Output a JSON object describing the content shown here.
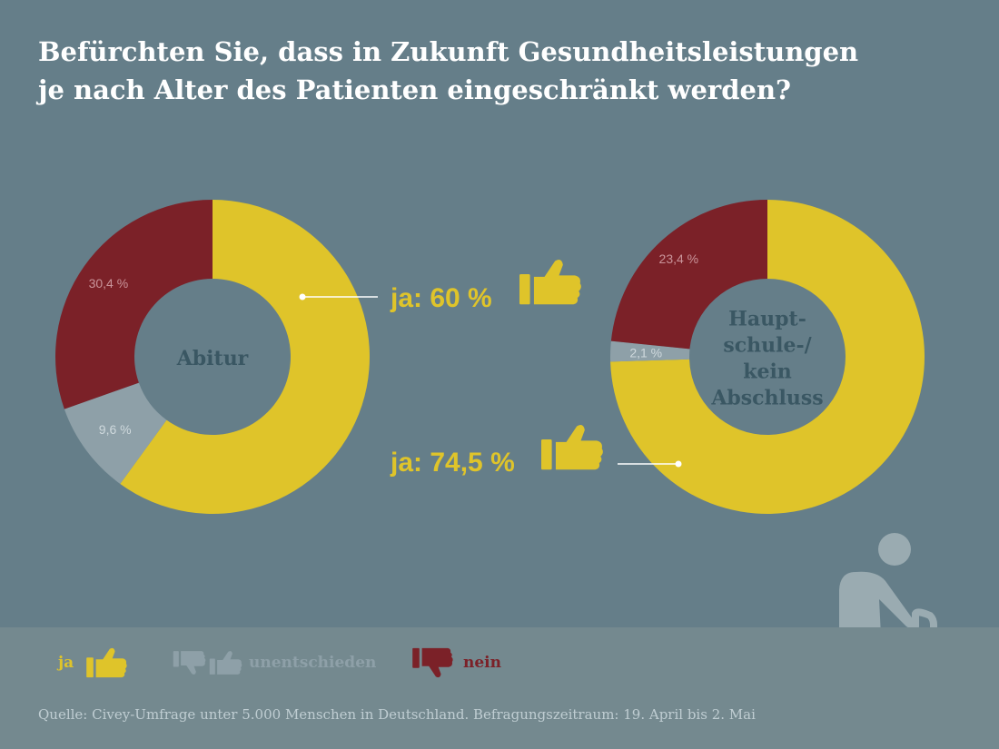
{
  "title": {
    "line1": "Befürchten  Sie, dass in Zukunft Gesundheitsleistungen",
    "line2": "je nach Alter des Patienten eingeschränkt werden?"
  },
  "colors": {
    "background": "#657e89",
    "ja": "#dfc42a",
    "unentschieden": "#8ea0a8",
    "nein": "#7b2128",
    "center_text": "#3a5763",
    "legend_band": "#74898f"
  },
  "chart_data": [
    {
      "type": "pie",
      "variant": "donut",
      "center_label": "Abitur",
      "slices": [
        {
          "key": "ja",
          "value": 60,
          "label": ""
        },
        {
          "key": "unentschieden",
          "value": 9.6,
          "label": "9,6 %"
        },
        {
          "key": "nein",
          "value": 30.4,
          "label": "30,4 %"
        }
      ],
      "callout": "ja: 60 %"
    },
    {
      "type": "pie",
      "variant": "donut",
      "center_label": [
        "Haupt-",
        "schule-/",
        "kein",
        "Abschluss"
      ],
      "slices": [
        {
          "key": "ja",
          "value": 74.5,
          "label": ""
        },
        {
          "key": "unentschieden",
          "value": 2.1,
          "label": "2,1 %"
        },
        {
          "key": "nein",
          "value": 23.4,
          "label": "23,4 %"
        }
      ],
      "callout": "ja: 74,5 %"
    }
  ],
  "legend": {
    "ja": "ja",
    "unentschieden": "unentschieden",
    "nein": "nein"
  },
  "icons": [
    "thumbs-up-icon",
    "thumbs-down-icon",
    "elderly-person-icon"
  ],
  "source": "Quelle: Civey-Umfrage unter 5.000 Menschen in Deutschland. Befragungszeitraum: 19. April bis 2. Mai"
}
